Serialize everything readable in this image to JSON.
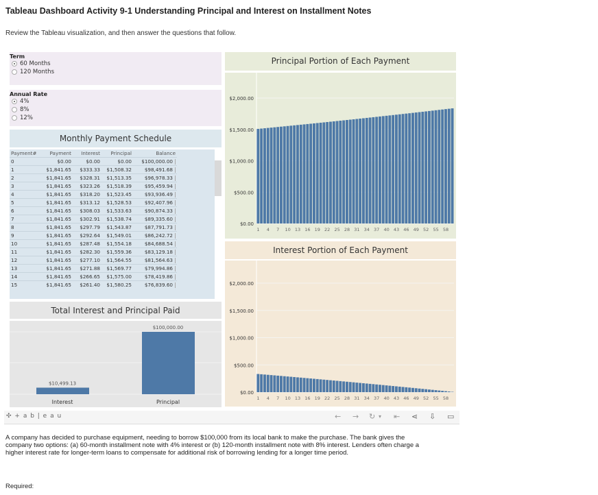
{
  "page": {
    "title": "Tableau Dashboard Activity 9-1 Understanding Principal and Interest on Installment Notes",
    "subtitle": "Review the Tableau visualization, and then answer the questions that follow."
  },
  "filters": {
    "term": {
      "label": "Term",
      "options": [
        {
          "label": "60 Months",
          "selected": true
        },
        {
          "label": "120 Months",
          "selected": false
        }
      ]
    },
    "rate": {
      "label": "Annual Rate",
      "options": [
        {
          "label": "4%",
          "selected": true
        },
        {
          "label": "8%",
          "selected": false
        },
        {
          "label": "12%",
          "selected": false
        }
      ]
    }
  },
  "schedule": {
    "title": "Monthly Payment Schedule",
    "columns": [
      "Payment#",
      "Payment",
      "Interest",
      "Principal",
      "Balance"
    ],
    "rows": [
      [
        "0",
        "$0.00",
        "$0.00",
        "$0.00",
        "$100,000.00"
      ],
      [
        "1",
        "$1,841.65",
        "$333.33",
        "$1,508.32",
        "$98,491.68"
      ],
      [
        "2",
        "$1,841.65",
        "$328.31",
        "$1,513.35",
        "$96,978.33"
      ],
      [
        "3",
        "$1,841.65",
        "$323.26",
        "$1,518.39",
        "$95,459.94"
      ],
      [
        "4",
        "$1,841.65",
        "$318.20",
        "$1,523.45",
        "$93,936.49"
      ],
      [
        "5",
        "$1,841.65",
        "$313.12",
        "$1,528.53",
        "$92,407.96"
      ],
      [
        "6",
        "$1,841.65",
        "$308.03",
        "$1,533.63",
        "$90,874.33"
      ],
      [
        "7",
        "$1,841.65",
        "$302.91",
        "$1,538.74",
        "$89,335.60"
      ],
      [
        "8",
        "$1,841.65",
        "$297.79",
        "$1,543.87",
        "$87,791.73"
      ],
      [
        "9",
        "$1,841.65",
        "$292.64",
        "$1,549.01",
        "$86,242.72"
      ],
      [
        "10",
        "$1,841.65",
        "$287.48",
        "$1,554.18",
        "$84,688.54"
      ],
      [
        "11",
        "$1,841.65",
        "$282.30",
        "$1,559.36",
        "$83,129.18"
      ],
      [
        "12",
        "$1,841.65",
        "$277.10",
        "$1,564.55",
        "$81,564.63"
      ],
      [
        "13",
        "$1,841.65",
        "$271.88",
        "$1,569.77",
        "$79,994.86"
      ],
      [
        "14",
        "$1,841.65",
        "$266.65",
        "$1,575.00",
        "$78,419.86"
      ],
      [
        "15",
        "$1,841.65",
        "$261.40",
        "$1,580.25",
        "$76,839.60"
      ]
    ]
  },
  "chart_data": [
    {
      "type": "bar",
      "title": "Total Interest and Principal Paid",
      "categories": [
        "Interest",
        "Principal"
      ],
      "values": [
        10499.13,
        100000.0
      ],
      "data_labels": [
        "$10,499.13",
        "$100,000.00"
      ],
      "color": "#4e79a7"
    },
    {
      "type": "bar",
      "title": "Principal Portion of Each Payment",
      "x": "1..60",
      "xticks": [
        "1",
        "4",
        "7",
        "10",
        "13",
        "16",
        "19",
        "22",
        "25",
        "28",
        "31",
        "34",
        "37",
        "40",
        "43",
        "46",
        "49",
        "52",
        "55",
        "58"
      ],
      "yticks": [
        "$0.00",
        "$500.00",
        "$1,000.00",
        "$1,500.00",
        "$2,000.00"
      ],
      "ylim": [
        0,
        2000
      ],
      "color": "#4e79a7",
      "background": "#e8ecda",
      "values": [
        1508.32,
        1513.35,
        1518.39,
        1523.45,
        1528.53,
        1533.63,
        1538.74,
        1543.87,
        1549.01,
        1554.18,
        1559.36,
        1564.55,
        1569.77,
        1575.0,
        1580.25,
        1585.5,
        1590.8,
        1596.1,
        1601.4,
        1606.8,
        1612.1,
        1617.5,
        1622.9,
        1628.3,
        1633.7,
        1639.2,
        1644.7,
        1650.2,
        1655.7,
        1661.2,
        1666.7,
        1672.3,
        1677.9,
        1683.5,
        1689.1,
        1694.6,
        1700.3,
        1706.0,
        1711.7,
        1717.4,
        1723.1,
        1728.8,
        1734.6,
        1740.4,
        1746.2,
        1752.0,
        1757.8,
        1763.7,
        1769.6,
        1775.5,
        1781.4,
        1787.3,
        1793.3,
        1799.3,
        1805.3,
        1811.3,
        1817.3,
        1823.4,
        1829.4,
        1835.5
      ]
    },
    {
      "type": "bar",
      "title": "Interest Portion of Each Payment",
      "x": "1..60",
      "xticks": [
        "1",
        "4",
        "7",
        "10",
        "13",
        "16",
        "19",
        "22",
        "25",
        "28",
        "31",
        "34",
        "37",
        "40",
        "43",
        "46",
        "49",
        "52",
        "55",
        "58"
      ],
      "yticks": [
        "$0.00",
        "$500.00",
        "$1,000.00",
        "$1,500.00",
        "$2,000.00"
      ],
      "ylim": [
        0,
        2000
      ],
      "color": "#4e79a7",
      "background": "#f4e9d8",
      "values": [
        333.33,
        328.31,
        323.26,
        318.2,
        313.12,
        308.03,
        302.91,
        297.79,
        292.64,
        287.48,
        282.3,
        277.1,
        271.88,
        266.65,
        261.4,
        256.2,
        250.9,
        245.6,
        240.3,
        234.9,
        229.6,
        224.2,
        218.8,
        213.4,
        208.0,
        202.5,
        197.0,
        191.5,
        186.0,
        180.5,
        175.0,
        169.4,
        163.8,
        158.2,
        152.6,
        147.1,
        141.4,
        135.7,
        130.0,
        124.3,
        118.6,
        112.9,
        107.1,
        101.3,
        95.5,
        89.7,
        83.9,
        78.0,
        72.1,
        66.2,
        60.3,
        54.4,
        48.4,
        42.4,
        36.4,
        30.4,
        24.4,
        18.3,
        12.3,
        6.1
      ]
    }
  ],
  "toolbar": {
    "logo": "+ a b | e a u",
    "icons": [
      "undo-icon",
      "redo-icon",
      "revert-icon",
      "reset-icon",
      "share-icon",
      "download-icon",
      "fullscreen-icon"
    ]
  },
  "footer": {
    "paragraph": "A company has decided to purchase equipment, needing to borrow $100,000 from its local bank to make the purchase. The bank gives the company two options: (a) 60-month installment note with 4% interest or (b) 120-month installment note with 8% interest. Lenders often charge a higher interest rate for longer-term loans to compensate for additional risk of borrowing lending for a longer time period.",
    "required": "Required:"
  }
}
